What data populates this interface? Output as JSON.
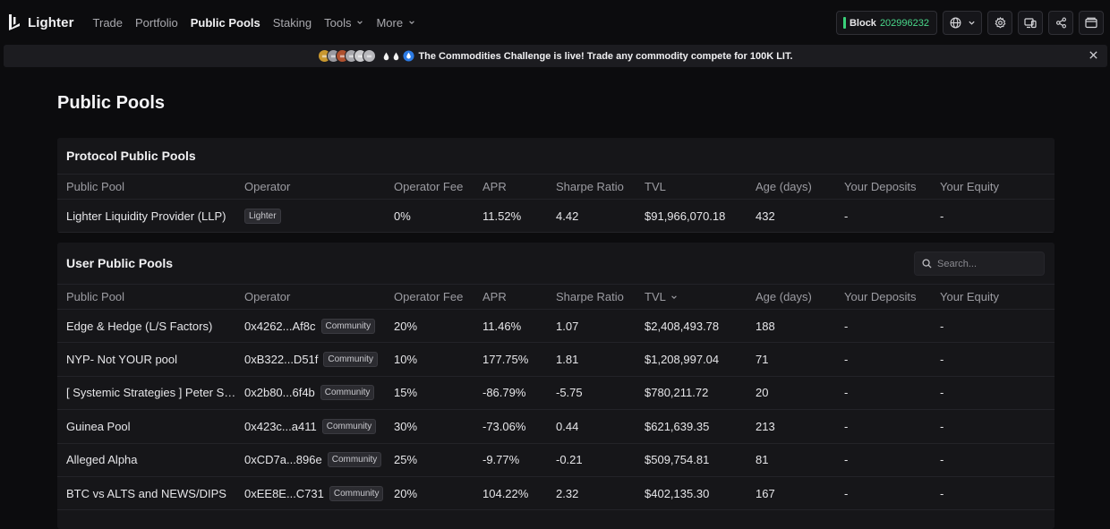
{
  "brand": {
    "name": "Lighter"
  },
  "nav": [
    {
      "label": "Trade",
      "active": false,
      "has_menu": false
    },
    {
      "label": "Portfolio",
      "active": false,
      "has_menu": false
    },
    {
      "label": "Public Pools",
      "active": true,
      "has_menu": false
    },
    {
      "label": "Staking",
      "active": false,
      "has_menu": false
    },
    {
      "label": "Tools",
      "active": false,
      "has_menu": true
    },
    {
      "label": "More",
      "active": false,
      "has_menu": true
    }
  ],
  "toolbar": {
    "block_label": "Block",
    "block_number": "202996232",
    "icons": [
      "globe-icon",
      "gear-icon",
      "devices-icon",
      "share-icon",
      "wallet-icon"
    ]
  },
  "banner": {
    "text": "The Commodities Challenge is live! Trade any commodity compete for 100K LIT.",
    "coin_colors": [
      "#c9982f",
      "#9a9aa0",
      "#b0512f",
      "#a8a8ad",
      "#c9c9cc",
      "#b7b7bb"
    ]
  },
  "page": {
    "title": "Public Pools"
  },
  "columns": [
    "Public Pool",
    "Operator",
    "Operator Fee",
    "APR",
    "Sharpe Ratio",
    "TVL",
    "Age (days)",
    "Your Deposits",
    "Your Equity"
  ],
  "protocol": {
    "title": "Protocol Public Pools",
    "rows": [
      {
        "pool": "Lighter Liquidity Provider (LLP)",
        "operator": "",
        "tag": "Lighter",
        "fee": "0%",
        "apr": "11.52%",
        "sharpe": "4.42",
        "tvl": "$91,966,070.18",
        "age": "432",
        "deposits": "-",
        "equity": "-"
      }
    ]
  },
  "user": {
    "title": "User Public Pools",
    "search_placeholder": "Search...",
    "rows": [
      {
        "pool": "Edge & Hedge (L/S Factors)",
        "operator": "0x4262...Af8c",
        "tag": "Community",
        "fee": "20%",
        "apr": "11.46%",
        "sharpe": "1.07",
        "tvl": "$2,408,493.78",
        "age": "188",
        "deposits": "-",
        "equity": "-"
      },
      {
        "pool": "NYP- Not YOUR pool",
        "operator": "0xB322...D51f",
        "tag": "Community",
        "fee": "10%",
        "apr": "177.75%",
        "sharpe": "1.81",
        "tvl": "$1,208,997.04",
        "age": "71",
        "deposits": "-",
        "equity": "-"
      },
      {
        "pool": "[ Systemic Strategies ] Peter Schiff'...",
        "operator": "0x2b80...6f4b",
        "tag": "Community",
        "fee": "15%",
        "apr": "-86.79%",
        "sharpe": "-5.75",
        "tvl": "$780,211.72",
        "age": "20",
        "deposits": "-",
        "equity": "-"
      },
      {
        "pool": "Guinea Pool",
        "operator": "0x423c...a411",
        "tag": "Community",
        "fee": "30%",
        "apr": "-73.06%",
        "sharpe": "0.44",
        "tvl": "$621,639.35",
        "age": "213",
        "deposits": "-",
        "equity": "-"
      },
      {
        "pool": "Alleged Alpha",
        "operator": "0xCD7a...896e",
        "tag": "Community",
        "fee": "25%",
        "apr": "-9.77%",
        "sharpe": "-0.21",
        "tvl": "$509,754.81",
        "age": "81",
        "deposits": "-",
        "equity": "-"
      },
      {
        "pool": "BTC vs ALTS and NEWS/DIPS",
        "operator": "0xEE8E...C731",
        "tag": "Community",
        "fee": "20%",
        "apr": "104.22%",
        "sharpe": "2.32",
        "tvl": "$402,135.30",
        "age": "167",
        "deposits": "-",
        "equity": "-"
      }
    ]
  }
}
